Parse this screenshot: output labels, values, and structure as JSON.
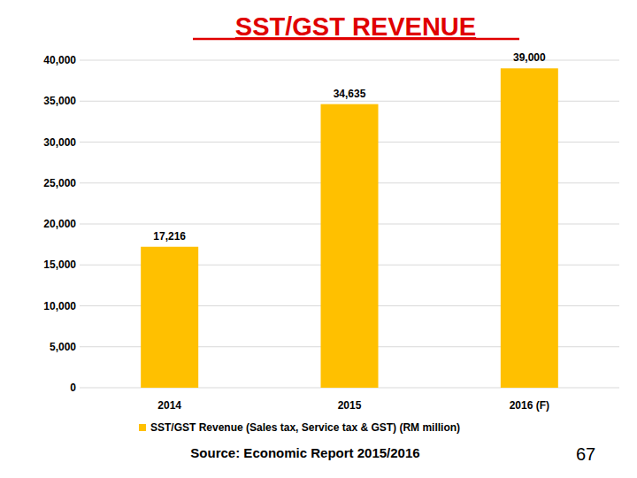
{
  "chart_data": {
    "type": "bar",
    "title": "SST/GST REVENUE",
    "categories": [
      "2014",
      "2015",
      "2016 (F)"
    ],
    "series": [
      {
        "name": "SST/GST Revenue (Sales tax, Service tax & GST) (RM million)",
        "color": "#ffc000",
        "values": [
          17216,
          34635,
          39000
        ],
        "value_labels": [
          "17,216",
          "34,635",
          "39,000"
        ]
      }
    ],
    "ylim": [
      0,
      40000
    ],
    "yticks": [
      0,
      {
        "value": 5000,
        "label": "5,000"
      },
      {
        "value": 10000,
        "label": "10,000"
      },
      {
        "value": 15000,
        "label": "15,000"
      },
      {
        "value": 20000,
        "label": "20,000"
      },
      {
        "value": 25000,
        "label": "25,000"
      },
      {
        "value": 30000,
        "label": "30,000"
      },
      {
        "value": 35000,
        "label": "35,000"
      },
      {
        "value": 40000,
        "label": "40,000"
      }
    ],
    "grid": true,
    "legend": "bottom",
    "data_labels": true
  },
  "footer": {
    "source": "Source: Economic Report 2015/2016",
    "page_number": "67"
  }
}
